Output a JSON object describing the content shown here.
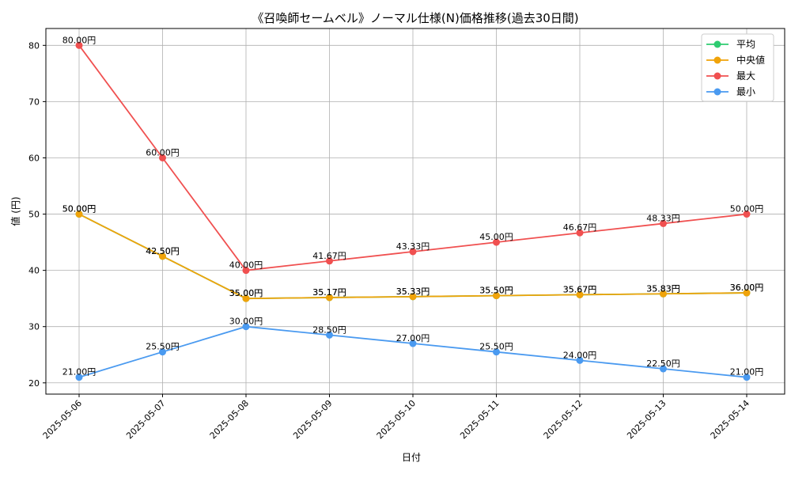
{
  "chart_data": {
    "type": "line",
    "title": "《召喚師セームベル》ノーマル仕様(N)価格推移(過去30日間)",
    "xlabel": "日付",
    "ylabel": "値 (円)",
    "ylim": [
      18,
      83
    ],
    "yticks": [
      20,
      30,
      40,
      50,
      60,
      70,
      80
    ],
    "grid": true,
    "legend_position": "top-right",
    "value_suffix": "円",
    "categories": [
      "2025-05-06",
      "2025-05-07",
      "2025-05-08",
      "2025-05-09",
      "2025-05-10",
      "2025-05-11",
      "2025-05-12",
      "2025-05-13",
      "2025-05-14"
    ],
    "series": [
      {
        "name": "平均",
        "color": "#2ecc71",
        "values": [
          50.0,
          42.5,
          35.0,
          35.17,
          35.33,
          35.5,
          35.67,
          35.83,
          36.0
        ]
      },
      {
        "name": "中央値",
        "color": "#f0a30a",
        "values": [
          50.0,
          42.5,
          35.0,
          35.17,
          35.33,
          35.5,
          35.67,
          35.83,
          36.0
        ]
      },
      {
        "name": "最大",
        "color": "#f05050",
        "values": [
          80.0,
          60.0,
          40.0,
          41.67,
          43.33,
          45.0,
          46.67,
          48.33,
          50.0
        ]
      },
      {
        "name": "最小",
        "color": "#4a9af0",
        "values": [
          21.0,
          25.5,
          30.0,
          28.5,
          27.0,
          25.5,
          24.0,
          22.5,
          21.0
        ]
      }
    ]
  }
}
